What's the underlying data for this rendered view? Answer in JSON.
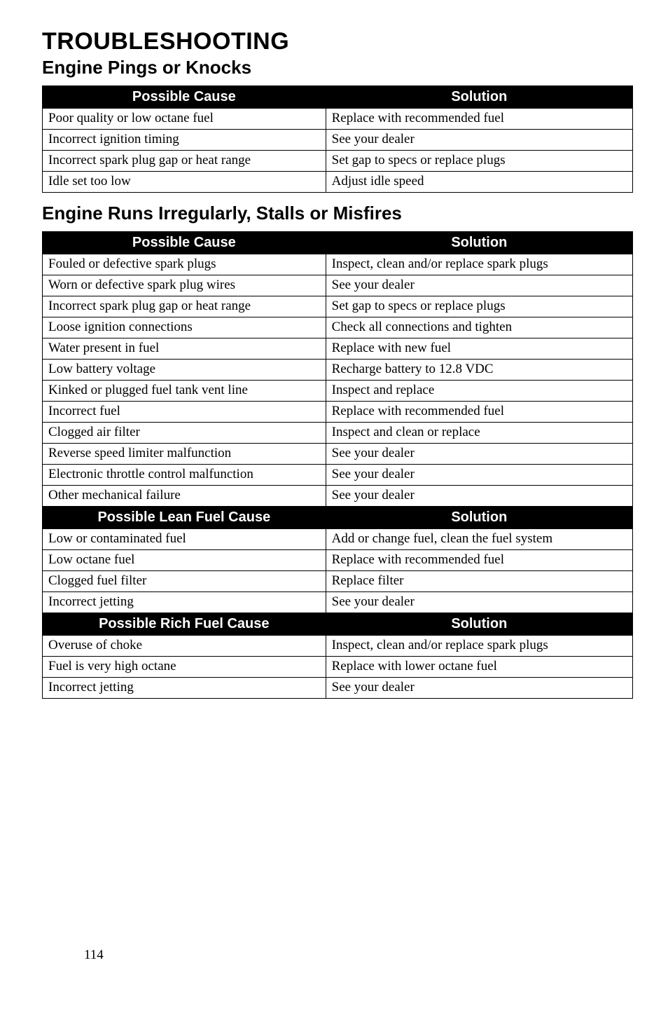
{
  "page": {
    "main_title": "TROUBLESHOOTING",
    "page_number": "114"
  },
  "section1": {
    "title": "Engine Pings or Knocks",
    "header_cause": "Possible Cause",
    "header_solution": "Solution",
    "rows": [
      {
        "cause": "Poor quality or low octane fuel",
        "solution": "Replace with recommended fuel"
      },
      {
        "cause": "Incorrect ignition timing",
        "solution": "See your dealer"
      },
      {
        "cause": "Incorrect spark plug gap or heat range",
        "solution": "Set gap to specs or replace plugs"
      },
      {
        "cause": "Idle set too low",
        "solution": "Adjust idle speed"
      }
    ]
  },
  "section2": {
    "title": "Engine Runs Irregularly, Stalls or Misfires",
    "header_cause_1": "Possible Cause",
    "header_solution_1": "Solution",
    "rows1": [
      {
        "cause": "Fouled or defective spark plugs",
        "solution": "Inspect, clean and/or replace spark plugs"
      },
      {
        "cause": "Worn or defective spark plug wires",
        "solution": "See your dealer"
      },
      {
        "cause": "Incorrect spark plug gap or heat range",
        "solution": "Set gap to specs or replace plugs"
      },
      {
        "cause": "Loose ignition connections",
        "solution": "Check all connections and tighten"
      },
      {
        "cause": "Water present in fuel",
        "solution": "Replace with new fuel"
      },
      {
        "cause": "Low battery voltage",
        "solution": "Recharge battery to 12.8 VDC"
      },
      {
        "cause": "Kinked or plugged fuel tank vent line",
        "solution": "Inspect and replace"
      },
      {
        "cause": "Incorrect fuel",
        "solution": "Replace with recommended fuel"
      },
      {
        "cause": "Clogged air filter",
        "solution": "Inspect and clean or replace"
      },
      {
        "cause": "Reverse speed limiter malfunction",
        "solution": "See your dealer"
      },
      {
        "cause": "Electronic throttle control malfunction",
        "solution": "See your dealer"
      },
      {
        "cause": "Other mechanical failure",
        "solution": "See your dealer"
      }
    ],
    "header_cause_2": "Possible Lean Fuel Cause",
    "header_solution_2": "Solution",
    "rows2": [
      {
        "cause": "Low or contaminated fuel",
        "solution": "Add or change fuel, clean the fuel system"
      },
      {
        "cause": "Low octane fuel",
        "solution": "Replace with recommended fuel"
      },
      {
        "cause": "Clogged fuel filter",
        "solution": "Replace filter"
      },
      {
        "cause": "Incorrect jetting",
        "solution": "See your dealer"
      }
    ],
    "header_cause_3": "Possible Rich Fuel Cause",
    "header_solution_3": "Solution",
    "rows3": [
      {
        "cause": "Overuse of choke",
        "solution": "Inspect, clean and/or replace spark plugs"
      },
      {
        "cause": "Fuel is very high octane",
        "solution": "Replace with lower octane fuel"
      },
      {
        "cause": "Incorrect jetting",
        "solution": "See your dealer"
      }
    ]
  }
}
